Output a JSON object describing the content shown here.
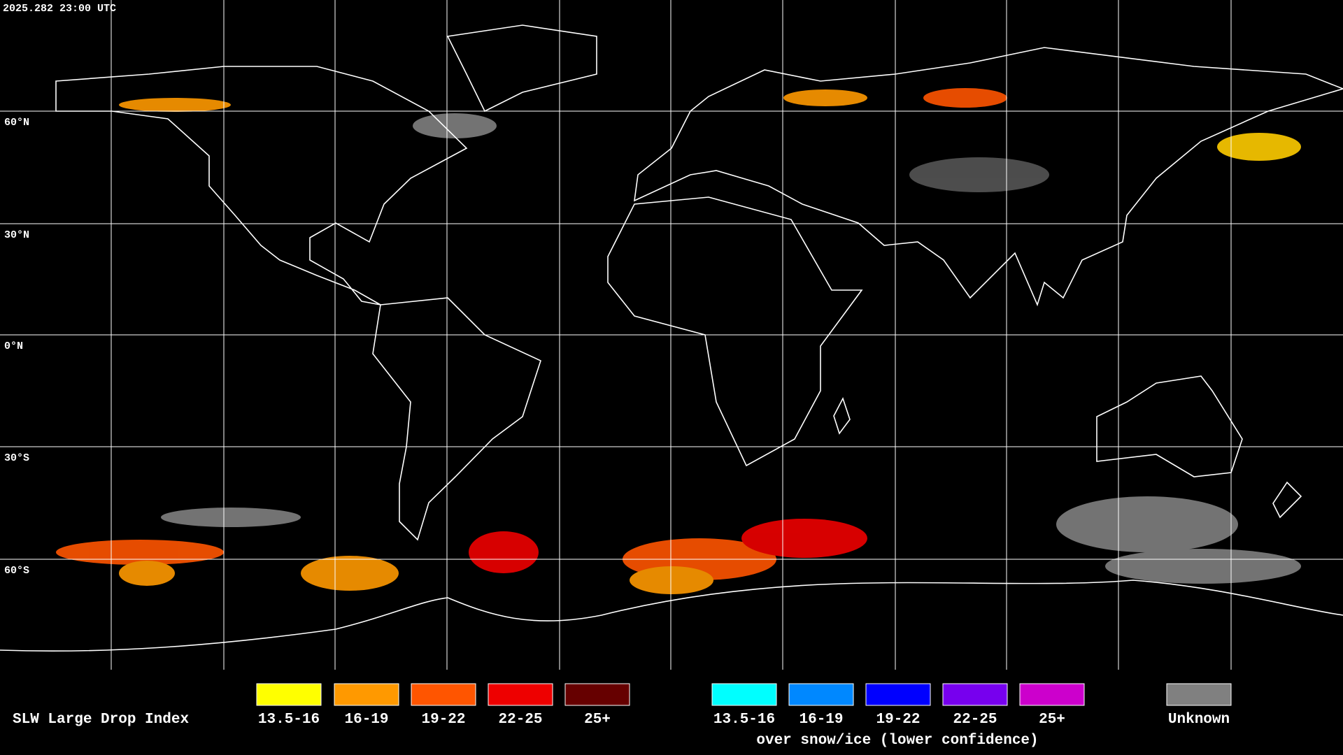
{
  "header": {
    "timestamp": "2025.282 23:00 UTC"
  },
  "latitude_labels": [
    "60°N",
    "30°N",
    "0°N",
    "30°S",
    "60°S"
  ],
  "legend": {
    "title": "SLW Large Drop Index",
    "liquid": [
      {
        "label": "13.5-16",
        "color": "#ffff00"
      },
      {
        "label": "16-19",
        "color": "#ff9900"
      },
      {
        "label": "19-22",
        "color": "#ff5500"
      },
      {
        "label": "22-25",
        "color": "#ee0000"
      },
      {
        "label": "25+",
        "color": "#660000"
      }
    ],
    "snow": [
      {
        "label": "13.5-16",
        "color": "#00ffff"
      },
      {
        "label": "16-19",
        "color": "#0088ff"
      },
      {
        "label": "19-22",
        "color": "#0000ff"
      },
      {
        "label": "22-25",
        "color": "#7700ee"
      },
      {
        "label": "25+",
        "color": "#cc00cc"
      }
    ],
    "snow_caption": "over snow/ice (lower confidence)",
    "unknown": {
      "label": "Unknown",
      "color": "#808080"
    }
  }
}
